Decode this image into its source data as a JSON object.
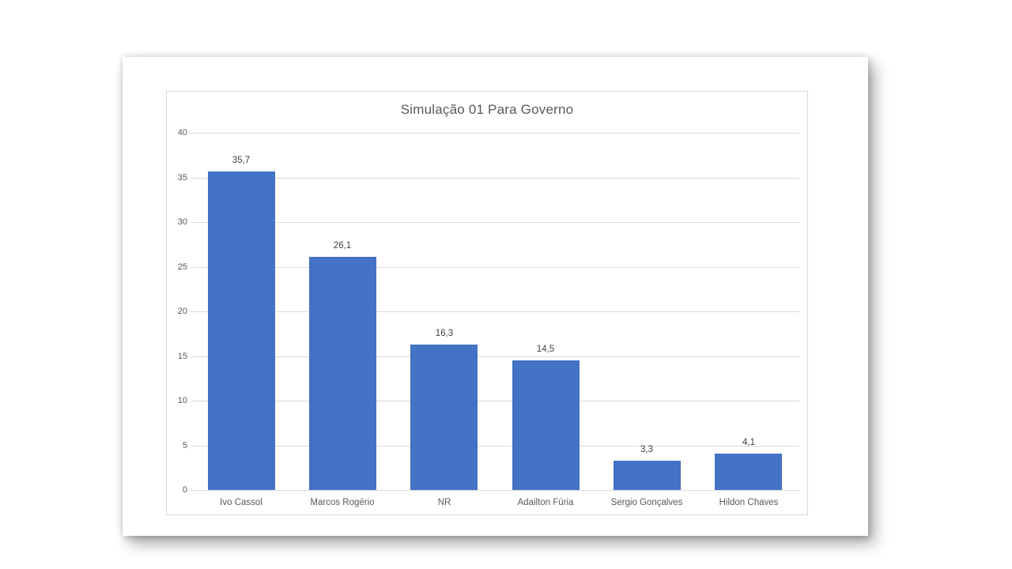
{
  "chart_data": {
    "type": "bar",
    "title": "Simulação 01 Para Governo",
    "categories": [
      "Ivo Cassol",
      "Marcos Rogério",
      "NR",
      "Adailton Fúria",
      "Sergio Gonçalves",
      "Hildon Chaves"
    ],
    "values": [
      35.7,
      26.1,
      16.3,
      14.5,
      3.3,
      4.1
    ],
    "value_labels": [
      "35,7",
      "26,1",
      "16,3",
      "14,5",
      "3,3",
      "4,1"
    ],
    "xlabel": "",
    "ylabel": "",
    "ylim": [
      0,
      40
    ],
    "y_ticks": [
      0,
      5,
      10,
      15,
      20,
      25,
      30,
      35,
      40
    ],
    "grid": true,
    "legend_position": "none",
    "colors": {
      "bar": "#4472c4",
      "gridline": "#d9d9d9",
      "axis_text": "#595959",
      "value_label_text": "#404040",
      "title_text": "#595959",
      "chart_border": "#d9d9d9"
    }
  }
}
